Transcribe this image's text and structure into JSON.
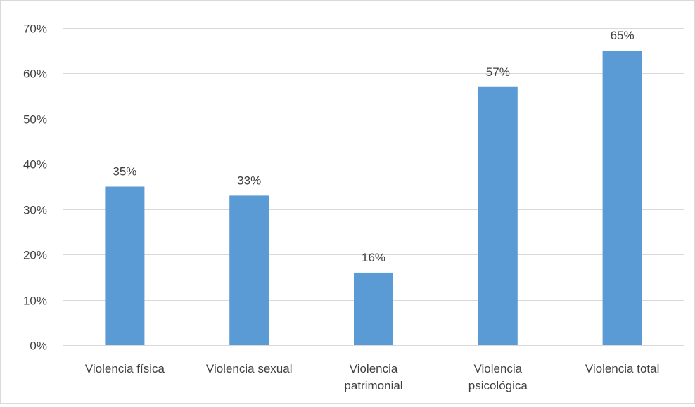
{
  "chart_data": {
    "type": "bar",
    "title": "",
    "xlabel": "",
    "ylabel": "",
    "categories": [
      [
        "Violencia física"
      ],
      [
        "Violencia sexual"
      ],
      [
        "Violencia",
        "patrimonial"
      ],
      [
        "Violencia",
        "psicológica"
      ],
      [
        "Violencia total"
      ]
    ],
    "values": [
      35,
      33,
      16,
      57,
      65
    ],
    "data_labels": [
      "35%",
      "33%",
      "16%",
      "57%",
      "65%"
    ],
    "ylim": [
      0,
      70
    ],
    "yticks": [
      0,
      10,
      20,
      30,
      40,
      50,
      60,
      70
    ],
    "ytick_labels": [
      "0%",
      "10%",
      "20%",
      "30%",
      "40%",
      "50%",
      "60%",
      "70%"
    ],
    "grid": true,
    "legend": "none",
    "colors": {
      "bar": "#5b9bd5",
      "grid": "#d9d9d9",
      "text": "#404040",
      "border": "#d9d9d9"
    }
  }
}
